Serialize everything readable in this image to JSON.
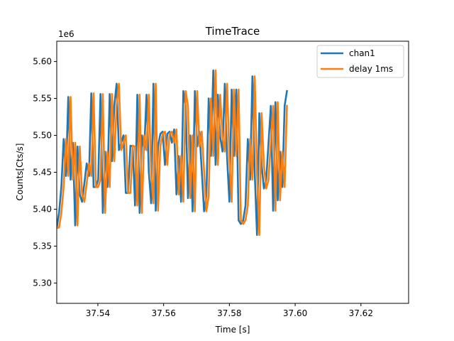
{
  "chart_data": {
    "type": "line",
    "title": "TimeTrace",
    "xlabel": "Time [s]",
    "ylabel": "Counts[Cts/s]",
    "y_scale_label": "1e6",
    "xlim": [
      37.5275,
      37.6345
    ],
    "ylim": [
      5.2725,
      5.6275
    ],
    "x_ticks": [
      37.54,
      37.56,
      37.58,
      37.6,
      37.62
    ],
    "x_tick_labels": [
      "37.54",
      "37.56",
      "37.58",
      "37.60",
      "37.62"
    ],
    "y_ticks": [
      5.3,
      5.35,
      5.4,
      5.45,
      5.5,
      5.55,
      5.6
    ],
    "y_tick_labels": [
      "5.30",
      "5.35",
      "5.40",
      "5.45",
      "5.50",
      "5.55",
      "5.60"
    ],
    "legend_position": "top-right",
    "x_start": 37.5275,
    "x_step": 0.0007,
    "delay_shift_points": 1,
    "series": [
      {
        "name": "chan1",
        "color": "#1f77b4",
        "values": [
          5.375,
          5.395,
          5.43,
          5.495,
          5.445,
          5.552,
          5.44,
          5.49,
          5.378,
          5.485,
          5.42,
          5.41,
          5.435,
          5.462,
          5.445,
          5.557,
          5.43,
          5.43,
          5.44,
          5.556,
          5.395,
          5.478,
          5.43,
          5.556,
          5.465,
          5.54,
          5.57,
          5.48,
          5.49,
          5.5,
          5.422,
          5.422,
          5.486,
          5.485,
          5.405,
          5.555,
          5.395,
          5.5,
          5.48,
          5.555,
          5.45,
          5.408,
          5.57,
          5.398,
          5.485,
          5.502,
          5.505,
          5.46,
          5.502,
          5.505,
          5.49,
          5.508,
          5.42,
          5.472,
          5.41,
          5.56,
          5.54,
          5.415,
          5.5,
          5.397,
          5.56,
          5.485,
          5.505,
          5.452,
          5.397,
          5.418,
          5.55,
          5.472,
          5.588,
          5.46,
          5.555,
          5.498,
          5.478,
          5.57,
          5.47,
          5.41,
          5.562,
          5.472,
          5.562,
          5.385,
          5.38,
          5.385,
          5.405,
          5.495,
          5.44,
          5.58,
          5.45,
          5.365,
          5.53,
          5.46,
          5.428,
          5.44,
          5.49,
          5.54,
          5.398,
          5.545,
          5.412,
          5.478,
          5.43,
          5.54,
          5.56
        ]
      },
      {
        "name": "delay 1ms",
        "color": "#ff7f0e",
        "values": [
          5.375,
          5.375,
          5.395,
          5.43,
          5.495,
          5.445,
          5.552,
          5.44,
          5.49,
          5.378,
          5.485,
          5.42,
          5.41,
          5.435,
          5.462,
          5.445,
          5.557,
          5.43,
          5.43,
          5.44,
          5.556,
          5.395,
          5.478,
          5.43,
          5.556,
          5.465,
          5.54,
          5.57,
          5.48,
          5.49,
          5.5,
          5.422,
          5.422,
          5.486,
          5.485,
          5.405,
          5.555,
          5.395,
          5.5,
          5.48,
          5.555,
          5.45,
          5.408,
          5.57,
          5.398,
          5.485,
          5.502,
          5.505,
          5.46,
          5.502,
          5.505,
          5.49,
          5.508,
          5.42,
          5.472,
          5.41,
          5.56,
          5.54,
          5.415,
          5.5,
          5.397,
          5.56,
          5.485,
          5.505,
          5.452,
          5.397,
          5.418,
          5.55,
          5.472,
          5.588,
          5.46,
          5.555,
          5.498,
          5.478,
          5.57,
          5.47,
          5.41,
          5.562,
          5.472,
          5.562,
          5.385,
          5.38,
          5.385,
          5.405,
          5.495,
          5.44,
          5.58,
          5.45,
          5.365,
          5.53,
          5.46,
          5.428,
          5.44,
          5.49,
          5.54,
          5.398,
          5.545,
          5.412,
          5.478,
          5.43,
          5.54
        ]
      }
    ]
  }
}
